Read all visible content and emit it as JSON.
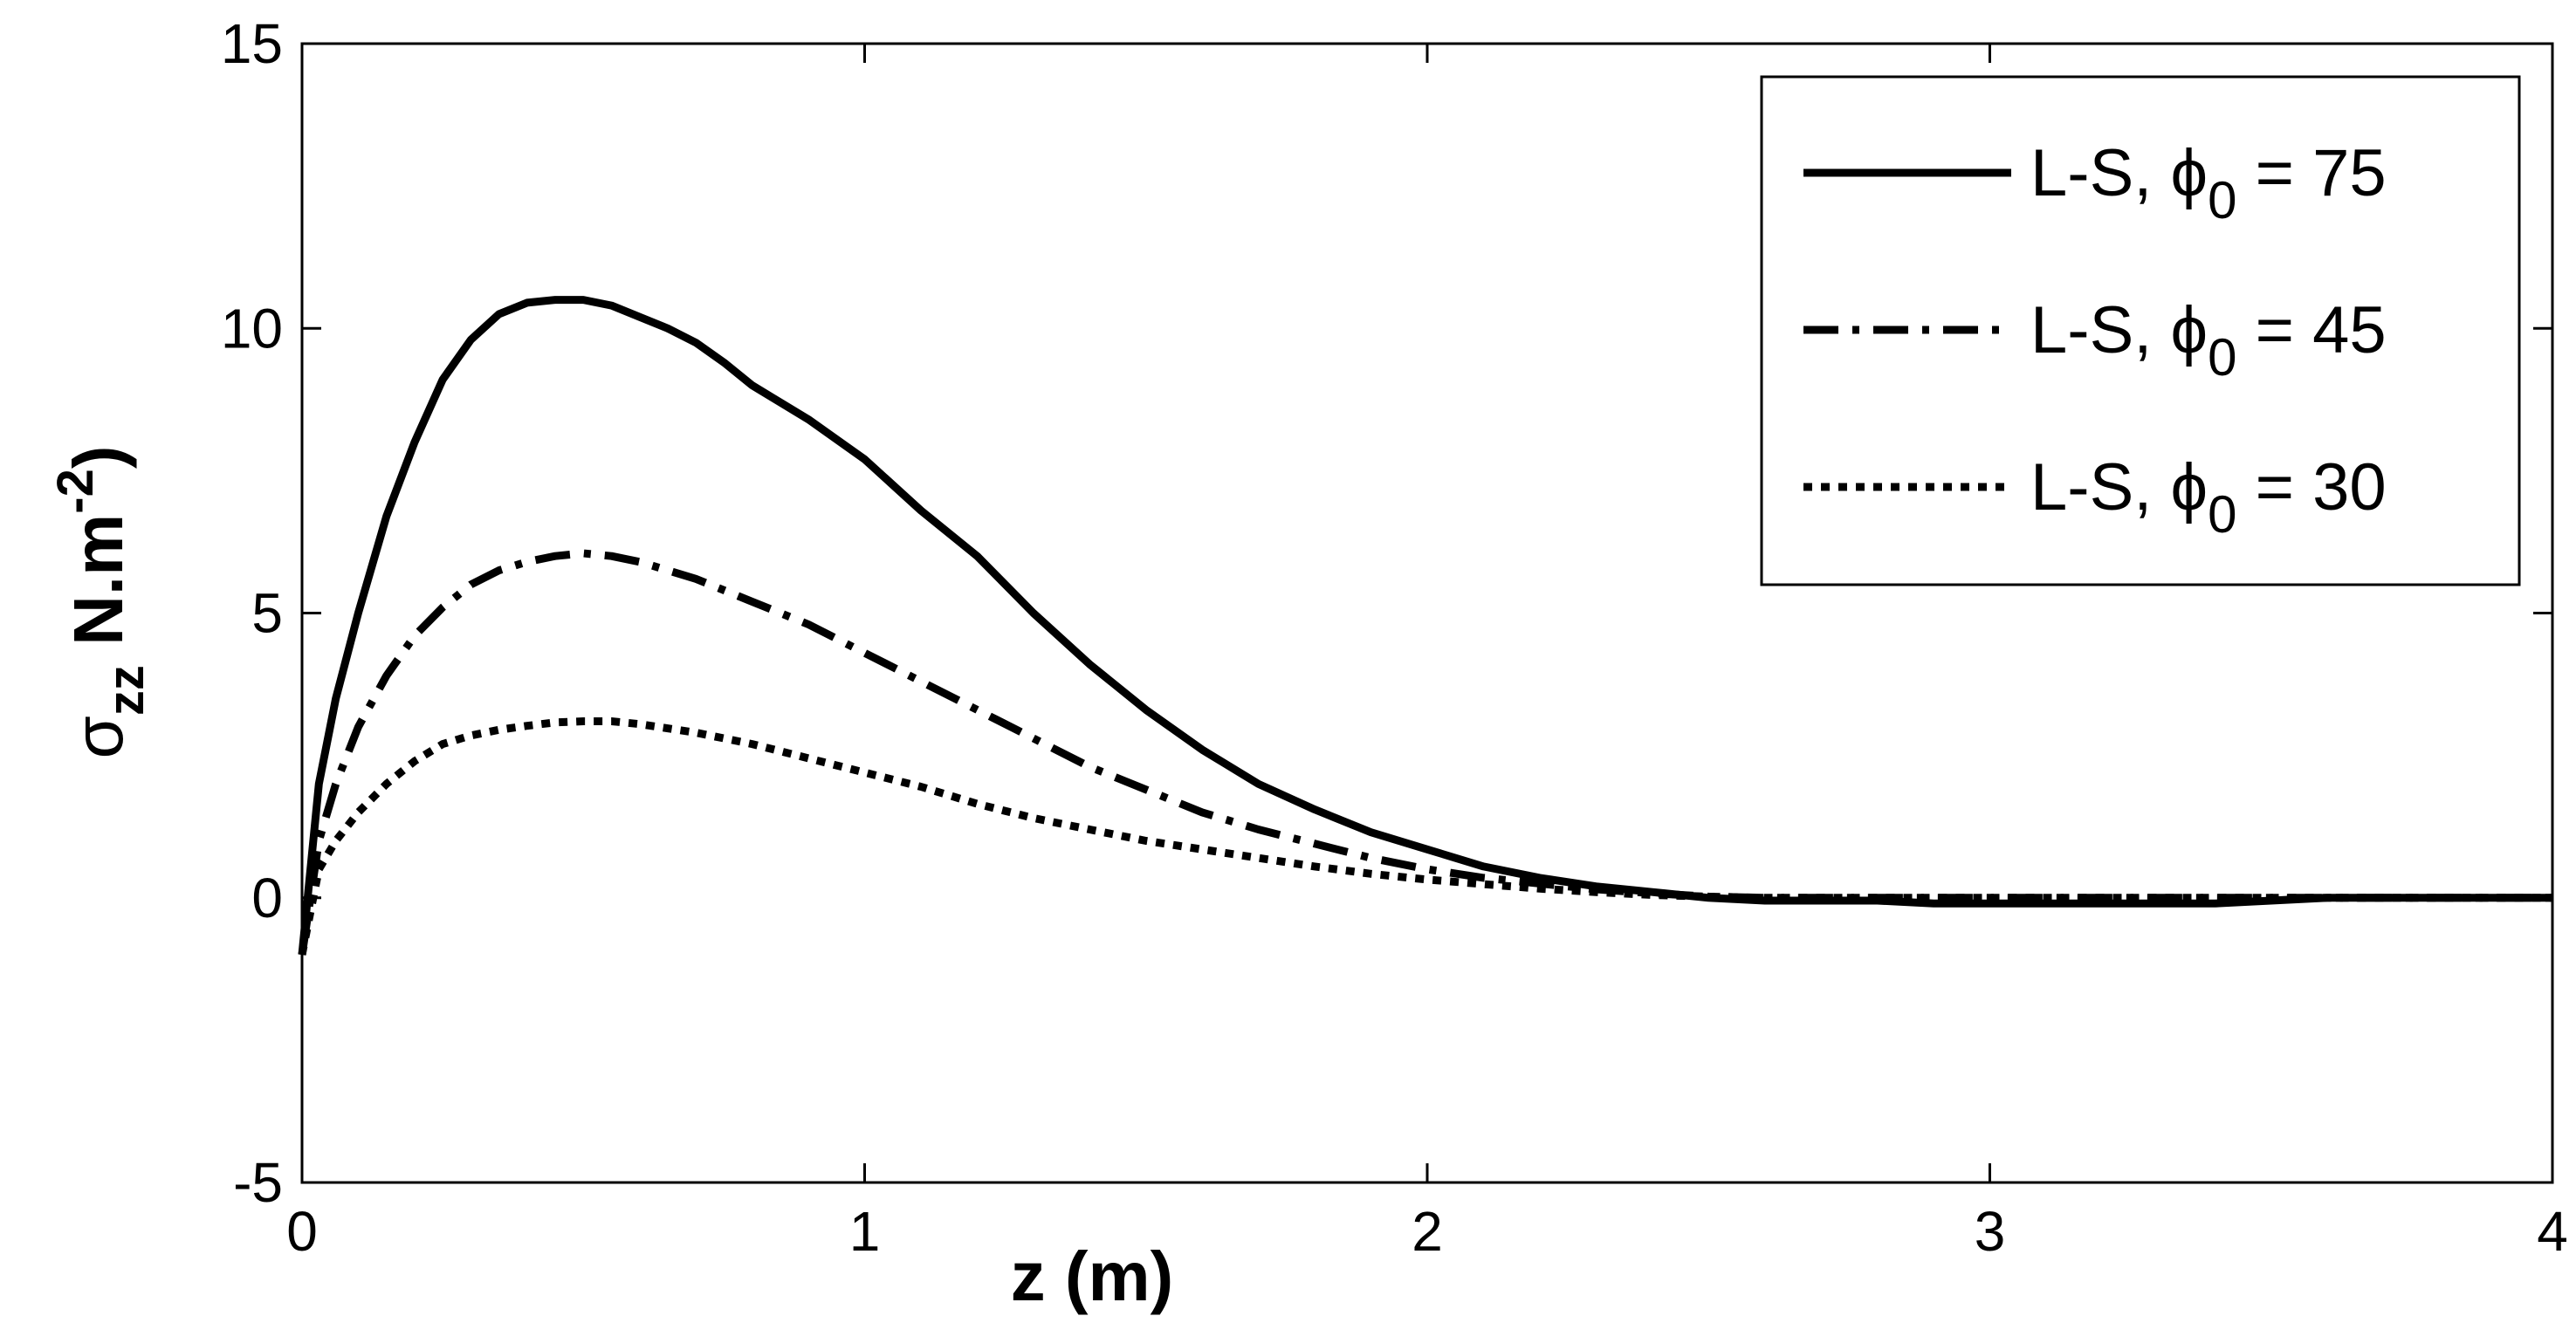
{
  "chart_data": {
    "type": "line",
    "title": "",
    "xlabel": "z (m)",
    "ylabel_main": "σ",
    "ylabel_sub": "zz",
    "ylabel_unit": " N.m",
    "ylabel_sup": "-2",
    "ylabel_close": ")",
    "xlim": [
      0,
      4
    ],
    "ylim": [
      -5,
      15
    ],
    "xticks": [
      0,
      1,
      2,
      3,
      4
    ],
    "yticks": [
      -5,
      0,
      5,
      10,
      15
    ],
    "grid": false,
    "legend_position": "top-right",
    "series": [
      {
        "name_prefix": "L-S, ",
        "name_symbol": "ϕ",
        "name_sub": "0",
        "name_suffix": " = 75",
        "style": "solid",
        "x": [
          0,
          0.03,
          0.06,
          0.1,
          0.15,
          0.2,
          0.25,
          0.3,
          0.35,
          0.4,
          0.45,
          0.5,
          0.55,
          0.6,
          0.65,
          0.7,
          0.75,
          0.8,
          0.9,
          1.0,
          1.1,
          1.2,
          1.3,
          1.4,
          1.5,
          1.6,
          1.7,
          1.8,
          1.9,
          2.0,
          2.1,
          2.2,
          2.3,
          2.4,
          2.5,
          2.6,
          2.7,
          2.8,
          2.9,
          3.0,
          3.2,
          3.4,
          3.6,
          3.8,
          4.0
        ],
        "y": [
          -1.0,
          2.0,
          3.5,
          5.0,
          6.7,
          8.0,
          9.1,
          9.8,
          10.25,
          10.45,
          10.5,
          10.5,
          10.4,
          10.2,
          10.0,
          9.75,
          9.4,
          9.0,
          8.4,
          7.7,
          6.8,
          6.0,
          5.0,
          4.1,
          3.3,
          2.6,
          2.0,
          1.55,
          1.15,
          0.85,
          0.55,
          0.35,
          0.2,
          0.1,
          0.0,
          -0.05,
          -0.05,
          -0.05,
          -0.1,
          -0.1,
          -0.1,
          -0.1,
          0.0,
          0.0,
          0.0
        ]
      },
      {
        "name_prefix": "L-S, ",
        "name_symbol": "ϕ",
        "name_sub": "0",
        "name_suffix": " = 45",
        "style": "dashdot",
        "x": [
          0,
          0.03,
          0.06,
          0.1,
          0.15,
          0.2,
          0.25,
          0.3,
          0.35,
          0.4,
          0.45,
          0.5,
          0.55,
          0.6,
          0.7,
          0.8,
          0.9,
          1.0,
          1.1,
          1.2,
          1.3,
          1.4,
          1.5,
          1.6,
          1.7,
          1.8,
          1.9,
          2.0,
          2.1,
          2.2,
          2.3,
          2.4,
          2.5,
          2.6,
          2.8,
          3.0,
          3.5,
          4.0
        ],
        "y": [
          -1.0,
          1.0,
          2.0,
          3.0,
          3.9,
          4.6,
          5.1,
          5.5,
          5.75,
          5.9,
          6.0,
          6.05,
          6.0,
          5.9,
          5.6,
          5.2,
          4.8,
          4.3,
          3.8,
          3.3,
          2.8,
          2.3,
          1.9,
          1.5,
          1.2,
          0.95,
          0.7,
          0.5,
          0.35,
          0.25,
          0.15,
          0.08,
          0.02,
          0.0,
          0.0,
          0.0,
          0.0,
          0.0
        ]
      },
      {
        "name_prefix": "L-S, ",
        "name_symbol": "ϕ",
        "name_sub": "0",
        "name_suffix": " = 30",
        "style": "dotted",
        "x": [
          0,
          0.03,
          0.06,
          0.1,
          0.15,
          0.2,
          0.25,
          0.3,
          0.35,
          0.4,
          0.45,
          0.5,
          0.55,
          0.6,
          0.7,
          0.8,
          0.9,
          1.0,
          1.1,
          1.2,
          1.3,
          1.4,
          1.5,
          1.6,
          1.7,
          1.8,
          1.9,
          2.0,
          2.1,
          2.2,
          2.3,
          2.4,
          2.5,
          2.6,
          2.8,
          3.0,
          3.5,
          4.0
        ],
        "y": [
          -1.0,
          0.5,
          1.0,
          1.5,
          2.0,
          2.4,
          2.7,
          2.85,
          2.95,
          3.02,
          3.08,
          3.1,
          3.1,
          3.05,
          2.9,
          2.7,
          2.45,
          2.2,
          1.95,
          1.65,
          1.4,
          1.2,
          1.0,
          0.85,
          0.7,
          0.55,
          0.42,
          0.32,
          0.24,
          0.16,
          0.1,
          0.05,
          0.02,
          0.0,
          0.0,
          0.0,
          0.0,
          0.0
        ]
      }
    ]
  }
}
